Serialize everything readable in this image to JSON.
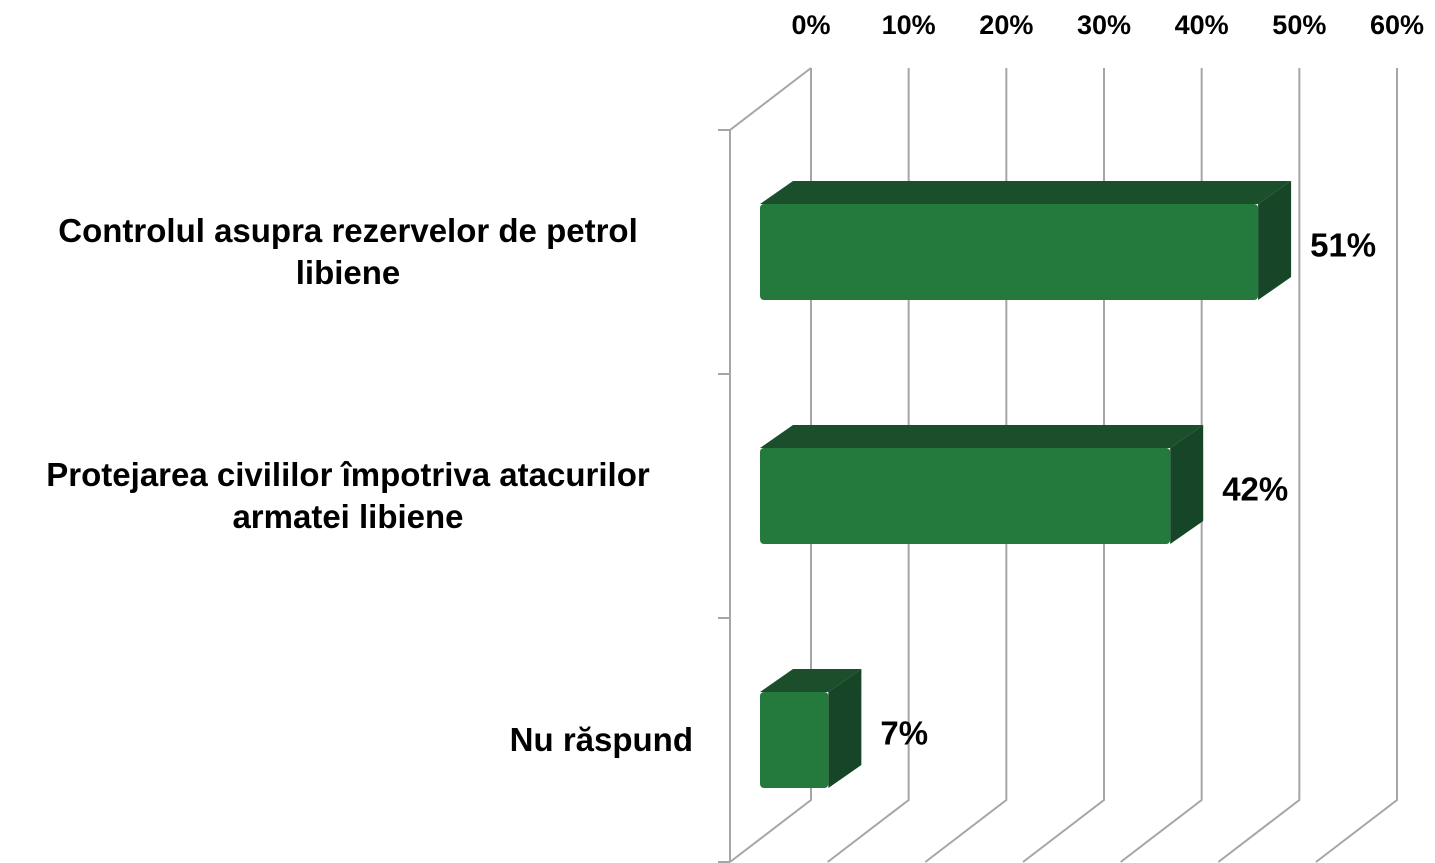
{
  "chart_data": {
    "type": "bar",
    "orientation": "horizontal",
    "categories": [
      "Controlul asupra rezervelor de petrol libiene",
      "Protejarea civililor împotriva atacurilor armatei libiene",
      "Nu răspund"
    ],
    "values": [
      51,
      42,
      7
    ],
    "value_labels": [
      "51%",
      "42%",
      "7%"
    ],
    "color": "#237a3c",
    "xlim": [
      0,
      60
    ],
    "xticks": [
      {
        "value": 0,
        "label": "0%"
      },
      {
        "value": 10,
        "label": "10%"
      },
      {
        "value": 20,
        "label": "20%"
      },
      {
        "value": 30,
        "label": "30%"
      },
      {
        "value": 40,
        "label": "40%"
      },
      {
        "value": 50,
        "label": "50%"
      },
      {
        "value": 60,
        "label": "60%"
      }
    ],
    "grid": true
  }
}
